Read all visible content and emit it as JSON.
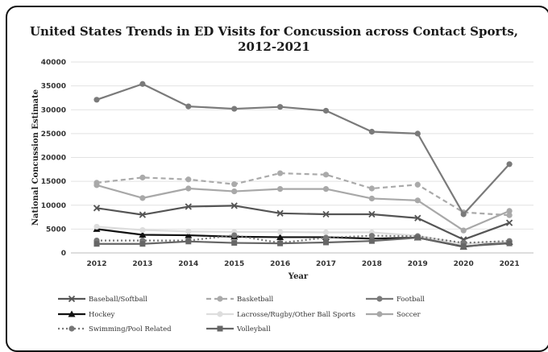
{
  "chart_data": {
    "type": "line",
    "title_line1": "United States Trends in ED Visits for Concussion across Contact Sports,",
    "title_line2": "2012-2021",
    "xlabel": "Year",
    "ylabel": "National Concussion Estimate",
    "categories": [
      "2012",
      "2013",
      "2014",
      "2015",
      "2016",
      "2017",
      "2018",
      "2019",
      "2020",
      "2021"
    ],
    "ylim": [
      0,
      40000
    ],
    "yticks": [
      0,
      5000,
      10000,
      15000,
      20000,
      25000,
      30000,
      35000,
      40000
    ],
    "grid": true,
    "legend_position": "bottom",
    "series": [
      {
        "name": "Baseball/Softball",
        "color": "#555555",
        "dash": "",
        "marker": "x",
        "values": [
          9400,
          8000,
          9700,
          9900,
          8300,
          8100,
          8100,
          7300,
          2800,
          6300
        ]
      },
      {
        "name": "Basketball",
        "color": "#aaaaaa",
        "dash": "6,4",
        "marker": "circle",
        "values": [
          14700,
          15800,
          15400,
          14400,
          16700,
          16400,
          13500,
          14300,
          8500,
          7900
        ]
      },
      {
        "name": "Football",
        "color": "#7a7a7a",
        "dash": "",
        "marker": "circle",
        "values": [
          32100,
          35400,
          30700,
          30200,
          30600,
          29800,
          25400,
          25000,
          8100,
          18600
        ]
      },
      {
        "name": "Hockey",
        "color": "#111111",
        "dash": "",
        "marker": "triangle",
        "values": [
          5000,
          3800,
          3700,
          3400,
          3300,
          3300,
          3000,
          3200,
          1300,
          2300
        ]
      },
      {
        "name": "Lacrosse/Rugby/Other Ball Sports",
        "color": "#dddddd",
        "dash": "",
        "marker": "circle",
        "values": [
          5500,
          4800,
          4500,
          4400,
          4400,
          4300,
          4300,
          3600,
          1900,
          2400
        ]
      },
      {
        "name": "Soccer",
        "color": "#a8a8a8",
        "dash": "",
        "marker": "circle",
        "values": [
          14200,
          11500,
          13500,
          12900,
          13400,
          13400,
          11400,
          11000,
          4700,
          8800
        ]
      },
      {
        "name": "Swimming/Pool Related",
        "color": "#777777",
        "dash": "2,3",
        "marker": "circle",
        "values": [
          2600,
          2600,
          2600,
          3700,
          2100,
          3200,
          3600,
          3500,
          2100,
          2500
        ]
      },
      {
        "name": "Volleyball",
        "color": "#666666",
        "dash": "",
        "marker": "square",
        "values": [
          1900,
          1900,
          2400,
          2100,
          2000,
          2200,
          2500,
          3200,
          1400,
          2000
        ]
      }
    ]
  }
}
